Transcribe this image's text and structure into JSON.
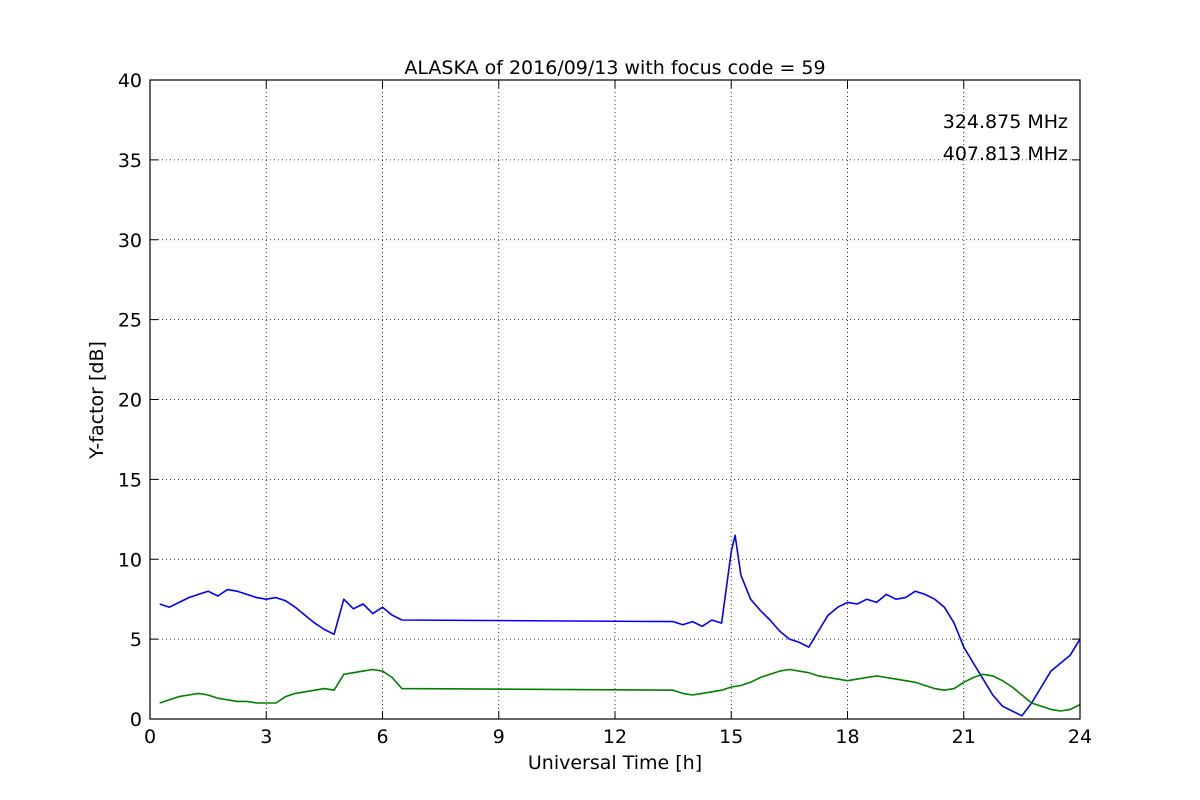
{
  "chart_data": {
    "type": "line",
    "title": "ALASKA of 2016/09/13 with focus code = 59",
    "xlabel": "Universal Time [h]",
    "ylabel": "Y-factor [dB]",
    "xlim": [
      0,
      24
    ],
    "ylim": [
      0,
      40
    ],
    "xticks": [
      0,
      3,
      6,
      9,
      12,
      15,
      18,
      21,
      24
    ],
    "yticks": [
      0,
      5,
      10,
      15,
      20,
      25,
      30,
      35,
      40
    ],
    "grid": true,
    "legend_position": "top-right",
    "series": [
      {
        "name": "324.875 MHz",
        "color": "#0000ff",
        "x": [
          0.25,
          0.5,
          0.75,
          1.0,
          1.25,
          1.5,
          1.75,
          2.0,
          2.25,
          2.5,
          2.75,
          3.0,
          3.25,
          3.5,
          3.75,
          4.0,
          4.25,
          4.5,
          4.75,
          5.0,
          5.25,
          5.5,
          5.75,
          6.0,
          6.25,
          6.5,
          13.5,
          13.75,
          14.0,
          14.25,
          14.5,
          14.75,
          15.0,
          15.1,
          15.25,
          15.5,
          15.75,
          16.0,
          16.25,
          16.5,
          16.75,
          17.0,
          17.25,
          17.5,
          17.75,
          18.0,
          18.25,
          18.5,
          18.75,
          19.0,
          19.25,
          19.5,
          19.75,
          20.0,
          20.25,
          20.5,
          20.75,
          21.0,
          21.25,
          21.5,
          21.75,
          22.0,
          22.25,
          22.5,
          22.75,
          23.0,
          23.25,
          23.5,
          23.75,
          24.0
        ],
        "y": [
          7.2,
          7.0,
          7.3,
          7.6,
          7.8,
          8.0,
          7.7,
          8.1,
          8.0,
          7.8,
          7.6,
          7.5,
          7.6,
          7.4,
          7.0,
          6.5,
          6.0,
          5.6,
          5.3,
          7.5,
          6.9,
          7.2,
          6.6,
          7.0,
          6.5,
          6.2,
          6.1,
          5.9,
          6.1,
          5.8,
          6.2,
          6.0,
          10.5,
          11.5,
          9.0,
          7.5,
          6.8,
          6.2,
          5.5,
          5.0,
          4.8,
          4.5,
          5.5,
          6.5,
          7.0,
          7.3,
          7.2,
          7.5,
          7.3,
          7.8,
          7.5,
          7.6,
          8.0,
          7.8,
          7.5,
          7.0,
          6.0,
          4.5,
          3.5,
          2.5,
          1.5,
          0.8,
          0.5,
          0.2,
          1.0,
          2.0,
          3.0,
          3.5,
          4.0,
          5.0
        ]
      },
      {
        "name": "407.813 MHz",
        "color": "#008000",
        "x": [
          0.25,
          0.5,
          0.75,
          1.0,
          1.25,
          1.5,
          1.75,
          2.0,
          2.25,
          2.5,
          2.75,
          3.0,
          3.25,
          3.5,
          3.75,
          4.0,
          4.25,
          4.5,
          4.75,
          5.0,
          5.25,
          5.5,
          5.75,
          6.0,
          6.25,
          6.5,
          13.5,
          13.75,
          14.0,
          14.25,
          14.5,
          14.75,
          15.0,
          15.25,
          15.5,
          15.75,
          16.0,
          16.25,
          16.5,
          16.75,
          17.0,
          17.25,
          17.5,
          17.75,
          18.0,
          18.25,
          18.5,
          18.75,
          19.0,
          19.25,
          19.5,
          19.75,
          20.0,
          20.25,
          20.5,
          20.75,
          21.0,
          21.25,
          21.5,
          21.75,
          22.0,
          22.25,
          22.5,
          22.75,
          23.0,
          23.25,
          23.5,
          23.75,
          24.0
        ],
        "y": [
          1.0,
          1.2,
          1.4,
          1.5,
          1.6,
          1.5,
          1.3,
          1.2,
          1.1,
          1.1,
          1.0,
          1.0,
          1.0,
          1.4,
          1.6,
          1.7,
          1.8,
          1.9,
          1.8,
          2.8,
          2.9,
          3.0,
          3.1,
          3.0,
          2.6,
          1.9,
          1.8,
          1.6,
          1.5,
          1.6,
          1.7,
          1.8,
          2.0,
          2.1,
          2.3,
          2.6,
          2.8,
          3.0,
          3.1,
          3.0,
          2.9,
          2.7,
          2.6,
          2.5,
          2.4,
          2.5,
          2.6,
          2.7,
          2.6,
          2.5,
          2.4,
          2.3,
          2.1,
          1.9,
          1.8,
          1.9,
          2.3,
          2.6,
          2.8,
          2.7,
          2.4,
          2.0,
          1.5,
          1.0,
          0.8,
          0.6,
          0.5,
          0.6,
          0.9
        ]
      }
    ]
  }
}
